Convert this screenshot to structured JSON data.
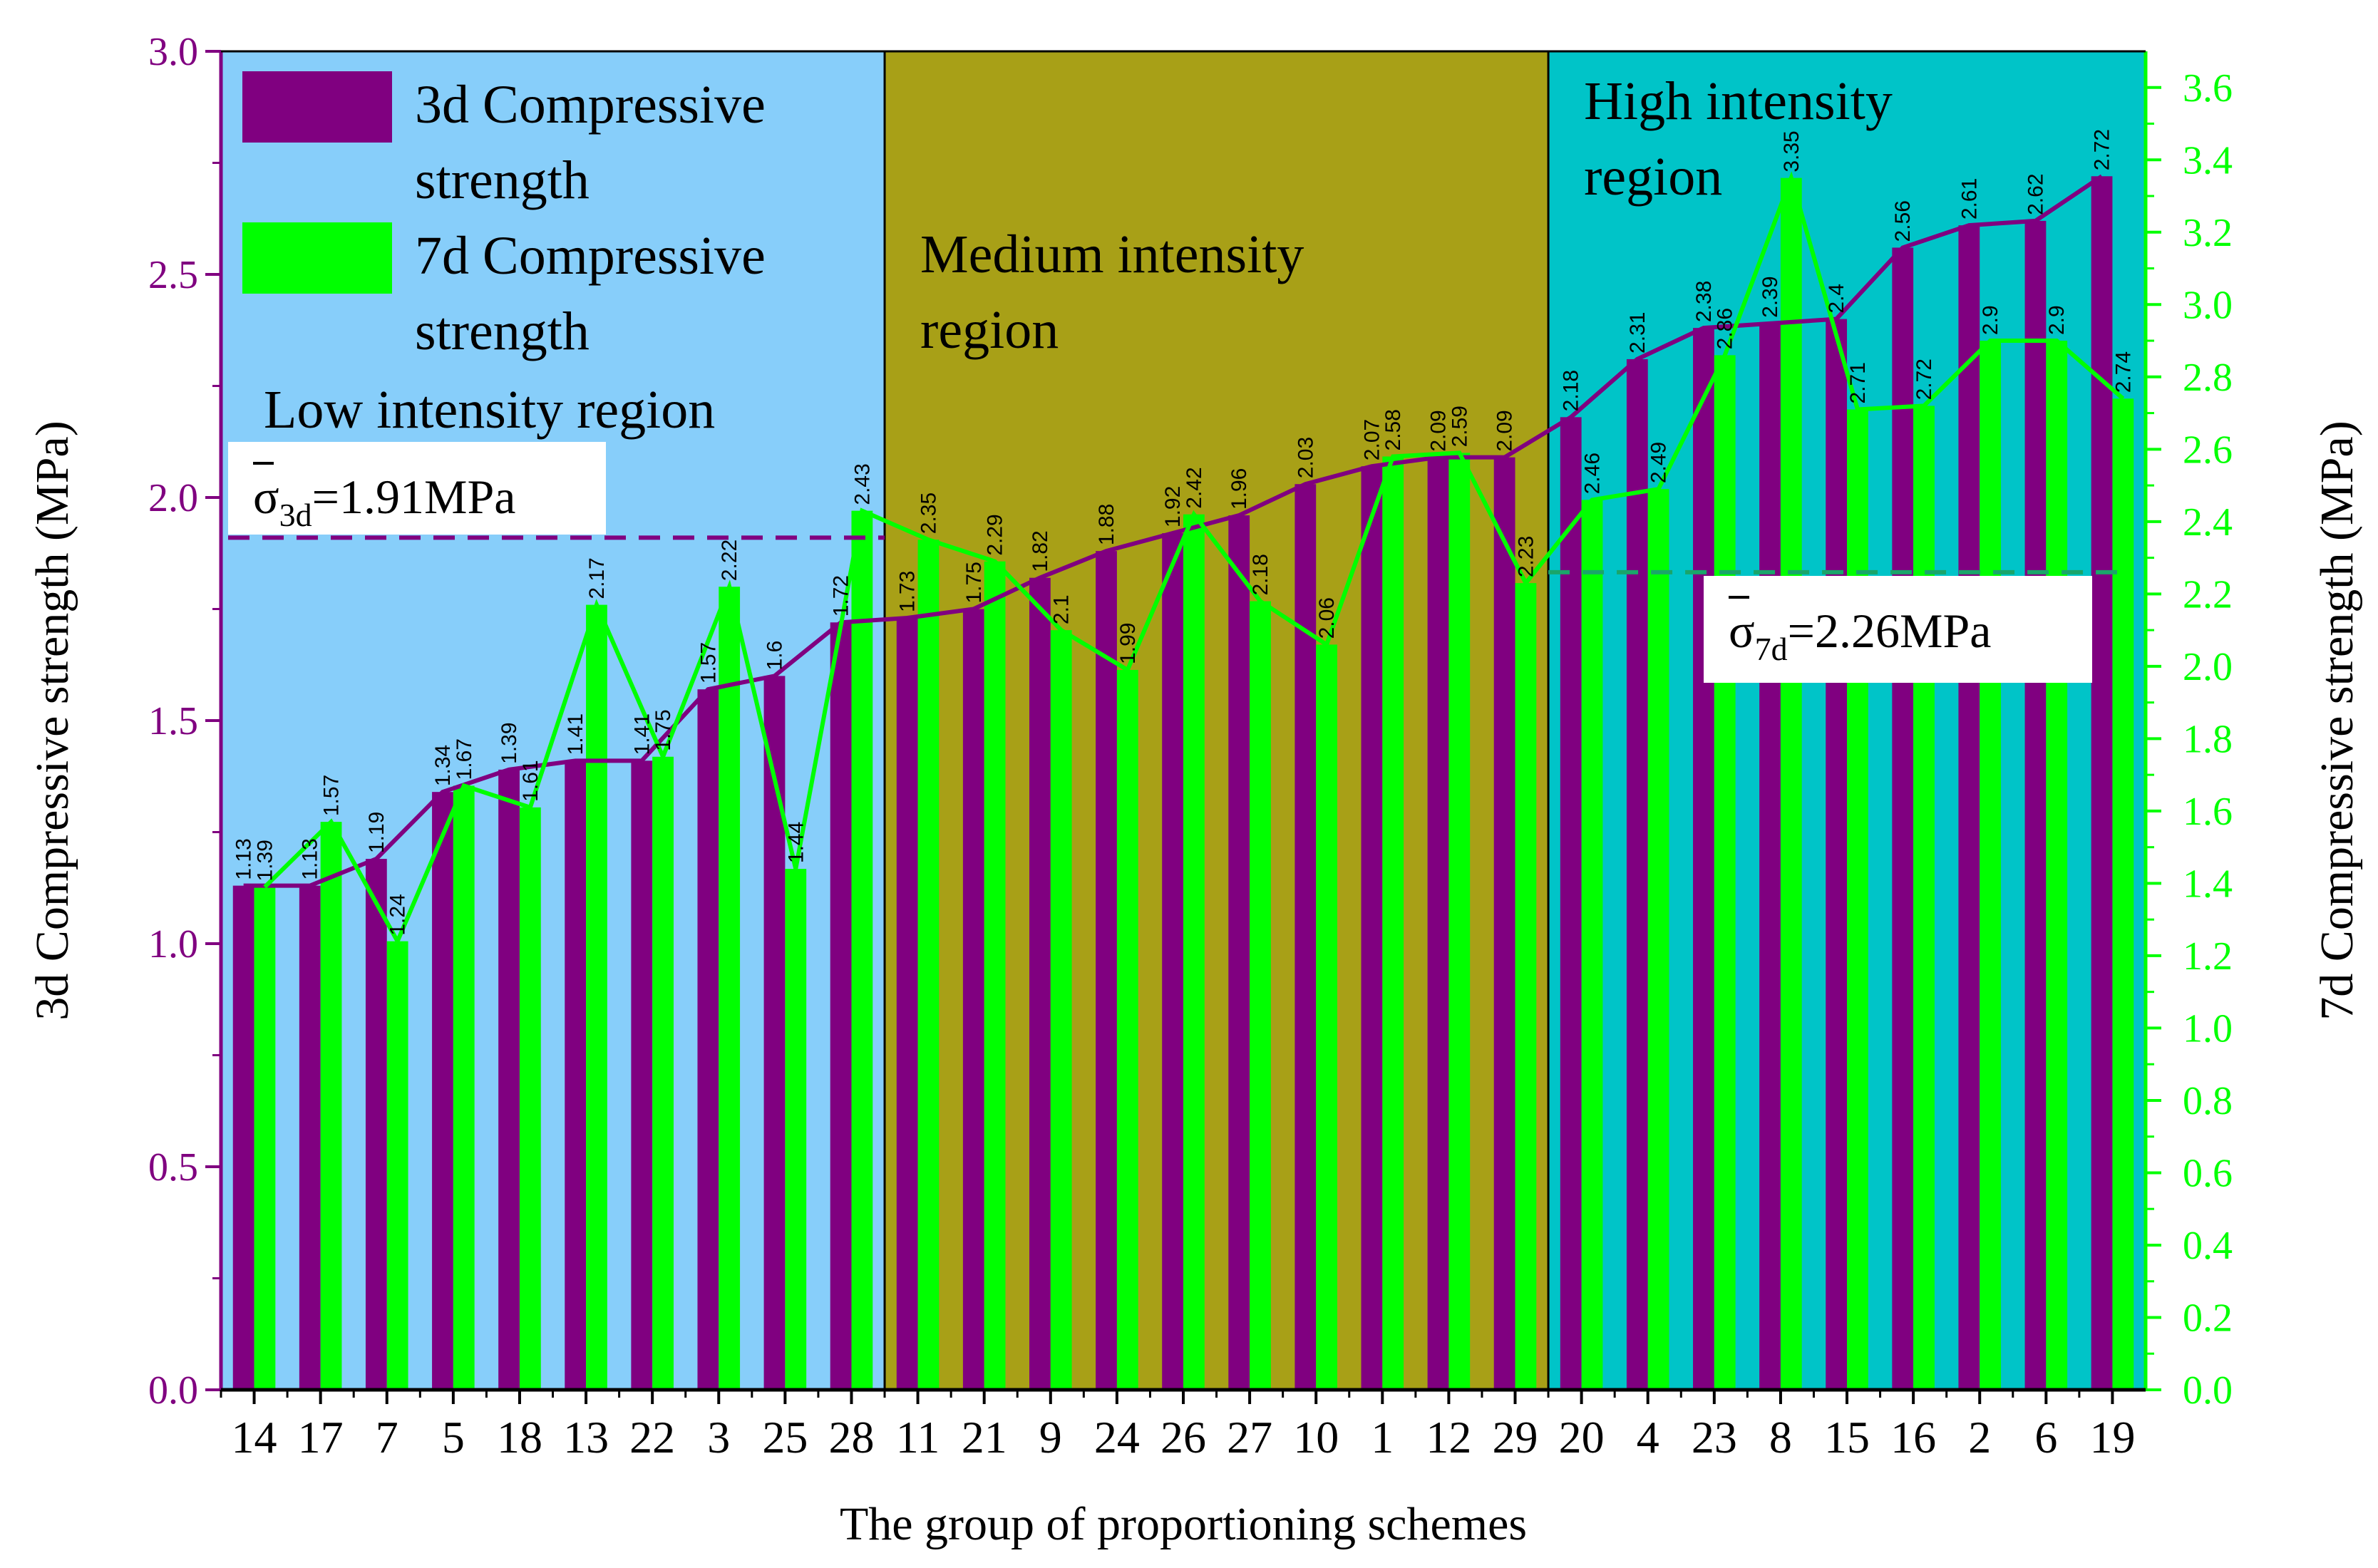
{
  "chart_data": {
    "type": "bar",
    "xlabel": "The group of proportioning schemes",
    "ylabel_left": "3d Compressive strength (MPa)",
    "ylabel_right": "7d Compressive strength (MPa)",
    "ylim_left": [
      0,
      3.0
    ],
    "ylim_right": [
      0,
      3.7
    ],
    "yticks_left": [
      "0.0",
      "0.5",
      "1.0",
      "1.5",
      "2.0",
      "2.5",
      "3.0"
    ],
    "yticks_right": [
      "0.0",
      "0.2",
      "0.4",
      "0.6",
      "0.8",
      "1.0",
      "1.2",
      "1.4",
      "1.6",
      "1.8",
      "2.0",
      "2.2",
      "2.4",
      "2.6",
      "2.8",
      "3.0",
      "3.2",
      "3.4",
      "3.6"
    ],
    "categories": [
      "14",
      "17",
      "7",
      "5",
      "18",
      "13",
      "22",
      "3",
      "25",
      "28",
      "11",
      "21",
      "9",
      "24",
      "26",
      "27",
      "10",
      "1",
      "12",
      "29",
      "20",
      "4",
      "23",
      "8",
      "15",
      "16",
      "2",
      "6",
      "19"
    ],
    "series": [
      {
        "name": "3d Compressive strength",
        "axis": "left",
        "color": "#800080",
        "values": [
          1.13,
          1.13,
          1.19,
          1.34,
          1.39,
          1.41,
          1.41,
          1.57,
          1.6,
          1.72,
          1.73,
          1.75,
          1.82,
          1.88,
          1.92,
          1.96,
          2.03,
          2.07,
          2.09,
          2.09,
          2.18,
          2.31,
          2.38,
          2.39,
          2.4,
          2.56,
          2.61,
          2.62,
          2.72
        ]
      },
      {
        "name": "7d Compressive strength",
        "axis": "right",
        "color": "#00ff00",
        "values": [
          1.39,
          1.57,
          1.24,
          1.67,
          1.61,
          2.17,
          1.75,
          2.22,
          1.44,
          2.43,
          2.35,
          2.29,
          2.1,
          1.99,
          2.42,
          2.18,
          2.06,
          2.58,
          2.59,
          2.23,
          2.46,
          2.49,
          2.86,
          3.35,
          2.71,
          2.72,
          2.9,
          2.9,
          2.74
        ]
      }
    ],
    "regions": [
      {
        "name": "Low intensity region",
        "lines": [
          "Low intensity region"
        ],
        "color": "#87cefa",
        "from_index": 0,
        "to_index": 9
      },
      {
        "name": "Medium intensity region",
        "lines": [
          "Medium intensity",
          "region"
        ],
        "color": "#a8a017",
        "from_index": 10,
        "to_index": 19
      },
      {
        "name": "High intensity region",
        "lines": [
          "High intensity",
          "region"
        ],
        "color": "#00c4c8",
        "from_index": 20,
        "to_index": 28
      }
    ],
    "legend": [
      {
        "label_lines": [
          "3d Compressive",
          "strength"
        ],
        "color": "#800080"
      },
      {
        "label_lines": [
          "7d Compressive",
          "strength"
        ],
        "color": "#00ff00"
      }
    ],
    "mean_lines": [
      {
        "axis": "left",
        "value": 1.91,
        "color": "#800080",
        "label_prefix": "σ",
        "label_sub": "3d",
        "label_value": "=1.91MPa"
      },
      {
        "axis": "right",
        "value": 2.26,
        "color": "#00ff00",
        "label_prefix": "σ",
        "label_sub": "7d",
        "label_value": "=2.26MPa"
      }
    ]
  }
}
